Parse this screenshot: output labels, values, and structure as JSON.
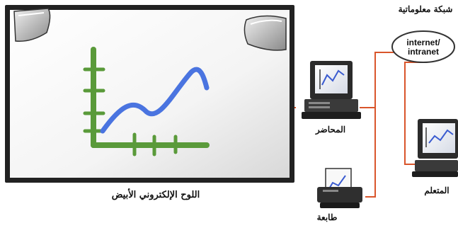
{
  "labels": {
    "whiteboard": "اللوح الإلكتروني الأبيض",
    "presenter": "المحاضر",
    "printer": "طابعة",
    "learner": "المتعلم",
    "network": "شبكة معلوماتية",
    "network_cloud_line1": "internet/",
    "network_cloud_line2": "intranet"
  },
  "colors": {
    "cable": "#d9552b",
    "graph_axes": "#5a9a3a",
    "graph_line": "#4a74e0",
    "board_frame": "#222222"
  },
  "icons": [
    "projector-icon",
    "computer-icon",
    "printer-icon",
    "laptop-icon",
    "cloud-icon"
  ]
}
